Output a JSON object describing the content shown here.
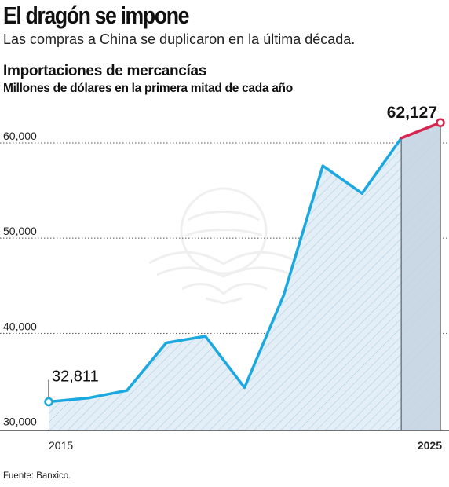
{
  "headline": "El dragón se impone",
  "subheadline": "Las compras a China se duplicaron en la última década.",
  "source": "Fuente: Banxico.",
  "colors": {
    "line": "#1aa8e0",
    "highlight": "#d6264f",
    "area_fill": "#e3eef6",
    "hatch": "#a9c8de",
    "shaded": "#c4d3e0",
    "grid": "#555555"
  },
  "chart_data": {
    "type": "line",
    "title": "Importaciones de mercancías",
    "subtitle": "Millones de dólares en la primera mitad de cada año",
    "x": [
      2015,
      2016,
      2017,
      2018,
      2019,
      2020,
      2021,
      2022,
      2023,
      2024,
      2025
    ],
    "y": [
      32811,
      33200,
      34000,
      39000,
      39700,
      34300,
      44000,
      57600,
      54700,
      60500,
      62127
    ],
    "ylim": [
      29800,
      62800
    ],
    "y_ticks": [
      {
        "value": 30000,
        "label": "30,000"
      },
      {
        "value": 40000,
        "label": "40,000"
      },
      {
        "value": 50000,
        "label": "50,000"
      },
      {
        "value": 60000,
        "label": "60,000"
      }
    ],
    "x_tick_labels": [
      {
        "value": 2015,
        "label": "2015",
        "bold": false
      },
      {
        "value": 2025,
        "label": "2025",
        "bold": true
      }
    ],
    "annotations": [
      {
        "x": 2015,
        "label": "32,811",
        "bold": false
      },
      {
        "x": 2025,
        "label": "62,127",
        "bold": true
      }
    ],
    "highlight_segment": [
      2024,
      2025
    ],
    "grid": "horizontal-dotted",
    "legend": "none"
  }
}
